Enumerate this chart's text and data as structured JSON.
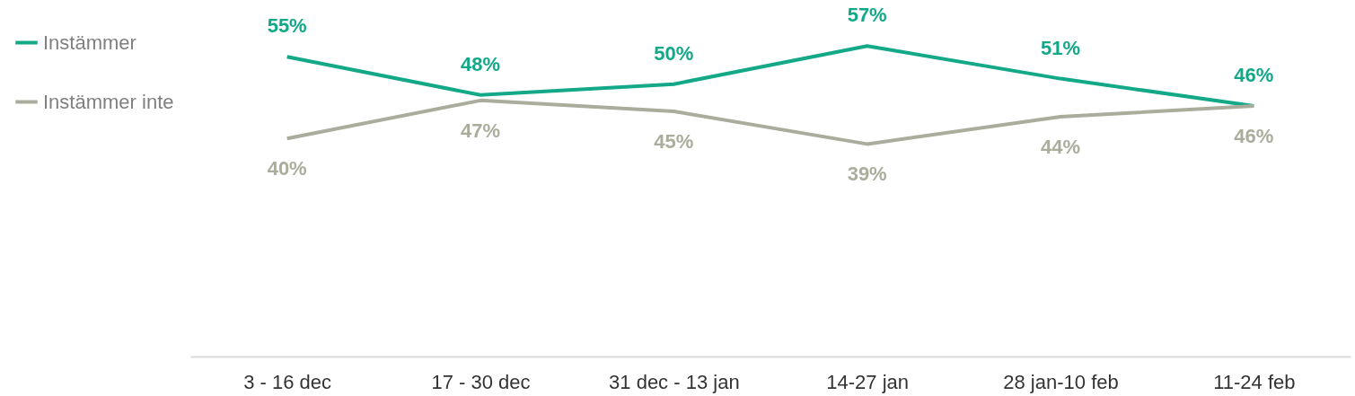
{
  "chart_data": {
    "type": "line",
    "categories": [
      "3 - 16 dec",
      "17 - 30 dec",
      "31 dec - 13 jan",
      "14-27 jan",
      "28 jan-10 feb",
      "11-24 feb"
    ],
    "series": [
      {
        "name": "Instämmer",
        "color": "#12a888",
        "values": [
          55,
          48,
          50,
          57,
          51,
          46
        ],
        "value_labels": [
          "55%",
          "48%",
          "50%",
          "57%",
          "51%",
          "46%"
        ]
      },
      {
        "name": "Instämmer inte",
        "color": "#abad9c",
        "values": [
          40,
          47,
          45,
          39,
          44,
          46
        ],
        "value_labels": [
          "40%",
          "47%",
          "45%",
          "39%",
          "44%",
          "46%"
        ]
      }
    ],
    "legend": "left",
    "grid": false,
    "marker": "none",
    "line_style": "solid",
    "tick_labels": "x"
  }
}
